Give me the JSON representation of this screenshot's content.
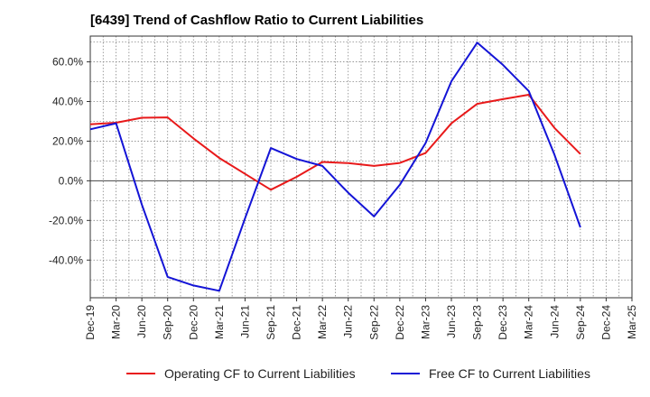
{
  "chart_data": {
    "type": "line",
    "title": "[6439]  Trend of Cashflow Ratio to Current Liabilities",
    "xlabel": "",
    "ylabel": "",
    "categories": [
      "Dec-19",
      "Mar-20",
      "Jun-20",
      "Sep-20",
      "Dec-20",
      "Mar-21",
      "Jun-21",
      "Sep-21",
      "Dec-21",
      "Mar-22",
      "Jun-22",
      "Sep-22",
      "Dec-22",
      "Mar-23",
      "Jun-23",
      "Sep-23",
      "Dec-23",
      "Mar-24",
      "Jun-24",
      "Sep-24",
      "Dec-24",
      "Mar-25"
    ],
    "y_ticks": [
      60.0,
      40.0,
      20.0,
      0.0,
      -20.0,
      -40.0
    ],
    "ylim": [
      -59,
      73
    ],
    "grid": true,
    "legend_position": "bottom",
    "series": [
      {
        "name": "Operating CF to Current Liabilities",
        "color": "#e8191a",
        "values": [
          28.5,
          29.3,
          31.8,
          32.0,
          21.4,
          11.5,
          3.5,
          -4.5,
          2.0,
          9.5,
          8.9,
          7.5,
          9.0,
          14.0,
          29.0,
          38.8,
          41.2,
          43.4,
          26.6,
          13.5,
          null,
          null
        ]
      },
      {
        "name": "Free CF to Current Liabilities",
        "color": "#1414d6",
        "values": [
          26.0,
          29.0,
          -12.0,
          -48.5,
          -52.8,
          -55.5,
          -19.0,
          16.5,
          11.0,
          7.5,
          -6.0,
          -18.0,
          -2.0,
          19.0,
          50.2,
          69.7,
          58.5,
          45.3,
          13.0,
          -23.5,
          null,
          null
        ]
      }
    ]
  }
}
